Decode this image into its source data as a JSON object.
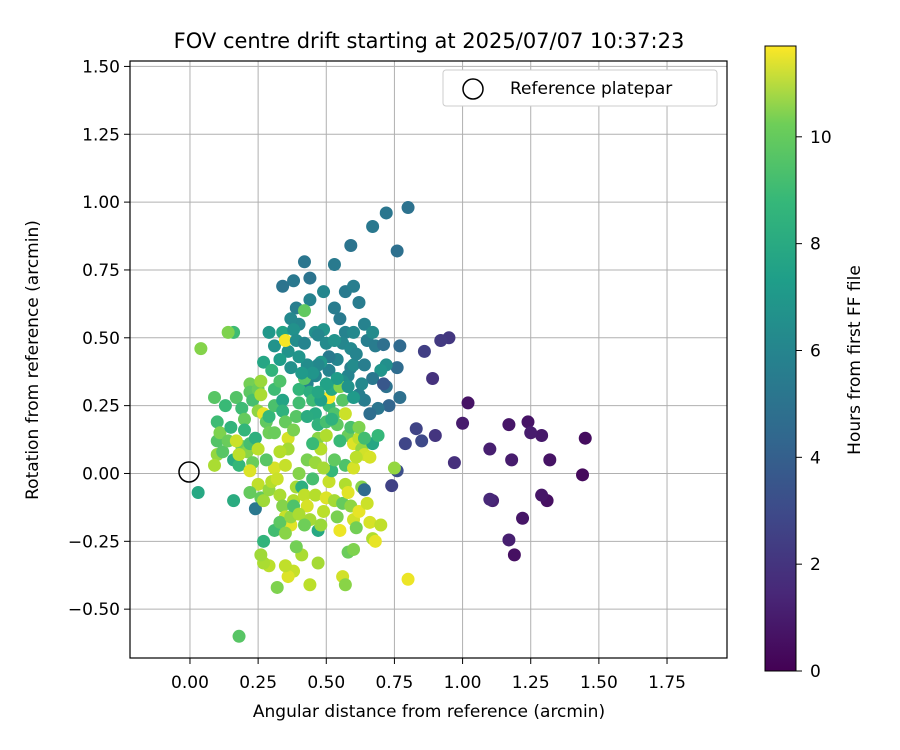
{
  "chart_data": {
    "type": "scatter",
    "title": "FOV centre drift starting at 2025/07/07 10:37:23",
    "xlabel": "Angular distance from reference (arcmin)",
    "ylabel": "Rotation from reference (arcmin)",
    "xlim": [
      -0.22,
      1.97
    ],
    "ylim": [
      -0.68,
      1.52
    ],
    "xticks": [
      0.0,
      0.25,
      0.5,
      0.75,
      1.0,
      1.25,
      1.5,
      1.75
    ],
    "xtick_labels": [
      "0.00",
      "0.25",
      "0.50",
      "0.75",
      "1.00",
      "1.25",
      "1.50",
      "1.75"
    ],
    "yticks": [
      -0.5,
      -0.25,
      0.0,
      0.25,
      0.5,
      0.75,
      1.0,
      1.25,
      1.5
    ],
    "ytick_labels": [
      "−0.50",
      "−0.25",
      "0.00",
      "0.25",
      "0.50",
      "0.75",
      "1.00",
      "1.25",
      "1.50"
    ],
    "grid": true,
    "legend": {
      "placement": "top-right",
      "entries": [
        "Reference platepar"
      ]
    },
    "reference_point": {
      "x": 0.0,
      "y": 0.0
    },
    "colorbar": {
      "label": "Hours from first FF file",
      "colormap": "viridis",
      "range": [
        0,
        11.7
      ],
      "ticks": [
        0,
        2,
        4,
        6,
        8,
        10
      ],
      "tick_labels": [
        "0",
        "2",
        "4",
        "6",
        "8",
        "10"
      ]
    },
    "points": [
      [
        1.44,
        -0.005,
        0.3
      ],
      [
        1.45,
        0.13,
        0.4
      ],
      [
        1.32,
        0.05,
        0.6
      ],
      [
        1.31,
        -0.1,
        0.5
      ],
      [
        1.29,
        -0.08,
        0.7
      ],
      [
        1.29,
        0.14,
        0.8
      ],
      [
        1.24,
        0.19,
        0.6
      ],
      [
        1.25,
        0.15,
        0.9
      ],
      [
        1.22,
        -0.165,
        0.7
      ],
      [
        1.19,
        -0.3,
        0.5
      ],
      [
        1.17,
        -0.245,
        1.0
      ],
      [
        1.18,
        0.05,
        0.9
      ],
      [
        1.17,
        0.18,
        0.7
      ],
      [
        1.11,
        -0.1,
        1.1
      ],
      [
        1.1,
        -0.095,
        1.3
      ],
      [
        1.1,
        0.09,
        1.0
      ],
      [
        1.02,
        0.26,
        0.6
      ],
      [
        1.0,
        0.185,
        0.9
      ],
      [
        0.97,
        0.04,
        1.6
      ],
      [
        0.95,
        0.5,
        1.9
      ],
      [
        0.92,
        0.49,
        2.0
      ],
      [
        0.89,
        0.35,
        1.7
      ],
      [
        0.9,
        0.14,
        1.8
      ],
      [
        0.86,
        0.45,
        2.2
      ],
      [
        0.83,
        0.165,
        2.4
      ],
      [
        0.85,
        0.12,
        2.6
      ],
      [
        0.79,
        0.11,
        2.5
      ],
      [
        0.76,
        0.01,
        2.8
      ],
      [
        0.74,
        -0.045,
        2.3
      ],
      [
        0.8,
        0.98,
        4.4
      ],
      [
        0.76,
        0.82,
        4.3
      ],
      [
        0.72,
        0.96,
        4.6
      ],
      [
        0.67,
        0.91,
        4.7
      ],
      [
        0.59,
        0.84,
        4.5
      ],
      [
        0.53,
        0.77,
        4.8
      ],
      [
        0.42,
        0.78,
        4.6
      ],
      [
        0.44,
        0.72,
        4.5
      ],
      [
        0.38,
        0.71,
        4.7
      ],
      [
        0.34,
        0.69,
        4.5
      ],
      [
        0.57,
        0.67,
        4.8
      ],
      [
        0.6,
        0.69,
        5.0
      ],
      [
        0.62,
        0.63,
        4.9
      ],
      [
        0.53,
        0.61,
        4.9
      ],
      [
        0.49,
        0.67,
        5.4
      ],
      [
        0.44,
        0.64,
        5.2
      ],
      [
        0.39,
        0.61,
        5.0
      ],
      [
        0.4,
        0.55,
        5.4
      ],
      [
        0.46,
        0.52,
        5.8
      ],
      [
        0.49,
        0.53,
        6.0
      ],
      [
        0.55,
        0.57,
        4.8
      ],
      [
        0.57,
        0.52,
        5.2
      ],
      [
        0.56,
        0.48,
        5.4
      ],
      [
        0.6,
        0.52,
        5.5
      ],
      [
        0.64,
        0.55,
        5.2
      ],
      [
        0.65,
        0.49,
        5.0
      ],
      [
        0.68,
        0.47,
        4.9
      ],
      [
        0.67,
        0.52,
        5.6
      ],
      [
        0.71,
        0.475,
        4.3
      ],
      [
        0.77,
        0.47,
        4.0
      ],
      [
        0.76,
        0.39,
        4.1
      ],
      [
        0.72,
        0.4,
        5.8
      ],
      [
        0.7,
        0.38,
        6.1
      ],
      [
        0.67,
        0.35,
        4.7
      ],
      [
        0.72,
        0.32,
        4.4
      ],
      [
        0.71,
        0.33,
        3.2
      ],
      [
        0.77,
        0.28,
        4.3
      ],
      [
        0.73,
        0.25,
        3.8
      ],
      [
        0.69,
        0.24,
        4.6
      ],
      [
        0.64,
        0.27,
        4.9
      ],
      [
        0.66,
        0.22,
        4.2
      ],
      [
        0.62,
        0.29,
        5.0
      ],
      [
        0.63,
        0.33,
        5.5
      ],
      [
        0.59,
        0.39,
        5.1
      ],
      [
        0.58,
        0.36,
        5.3
      ],
      [
        0.56,
        0.34,
        5.7
      ],
      [
        0.6,
        0.4,
        5.6
      ],
      [
        0.54,
        0.42,
        5.3
      ],
      [
        0.51,
        0.43,
        4.8
      ],
      [
        0.51,
        0.38,
        5.2
      ],
      [
        0.48,
        0.41,
        6.2
      ],
      [
        0.47,
        0.4,
        5.5
      ],
      [
        0.46,
        0.36,
        5.4
      ],
      [
        0.43,
        0.4,
        5.7
      ],
      [
        0.43,
        0.33,
        5.2
      ],
      [
        0.4,
        0.43,
        6.1
      ],
      [
        0.37,
        0.39,
        5.9
      ],
      [
        0.36,
        0.45,
        6.0
      ],
      [
        0.33,
        0.42,
        6.5
      ],
      [
        0.31,
        0.47,
        6.0
      ],
      [
        0.29,
        0.52,
        6.2
      ],
      [
        0.34,
        0.52,
        6.8
      ],
      [
        0.35,
        0.49,
        11.6
      ],
      [
        0.37,
        0.57,
        5.5
      ],
      [
        0.38,
        0.53,
        5.9
      ],
      [
        0.39,
        0.49,
        5.7
      ],
      [
        0.42,
        0.48,
        5.3
      ],
      [
        0.42,
        0.6,
        8.8
      ],
      [
        0.47,
        0.51,
        5.4
      ],
      [
        0.5,
        0.48,
        5.6
      ],
      [
        0.53,
        0.49,
        6.0
      ],
      [
        0.59,
        0.46,
        5.5
      ],
      [
        0.61,
        0.44,
        5.3
      ],
      [
        0.64,
        0.4,
        5.0
      ],
      [
        0.16,
        0.52,
        8.0
      ],
      [
        0.14,
        0.52,
        9.4
      ],
      [
        0.04,
        0.46,
        9.5
      ],
      [
        0.09,
        0.28,
        8.6
      ],
      [
        0.1,
        0.19,
        8.0
      ],
      [
        0.1,
        0.12,
        8.5
      ],
      [
        0.11,
        0.15,
        9.4
      ],
      [
        0.1,
        0.07,
        9.8
      ],
      [
        0.09,
        0.03,
        10.2
      ],
      [
        0.12,
        0.08,
        8.6
      ],
      [
        0.14,
        0.12,
        9.0
      ],
      [
        0.15,
        0.17,
        7.6
      ],
      [
        0.13,
        0.25,
        7.9
      ],
      [
        0.17,
        0.28,
        8.5
      ],
      [
        0.19,
        0.24,
        8.0
      ],
      [
        0.2,
        0.2,
        8.9
      ],
      [
        0.2,
        0.16,
        7.7
      ],
      [
        0.19,
        0.1,
        9.1
      ],
      [
        0.17,
        0.12,
        10.8
      ],
      [
        0.16,
        0.05,
        7.2
      ],
      [
        0.18,
        0.03,
        7.8
      ],
      [
        0.21,
        0.08,
        9.6
      ],
      [
        0.22,
        0.11,
        8.2
      ],
      [
        0.23,
        0.04,
        9.0
      ],
      [
        0.24,
        0.13,
        7.4
      ],
      [
        0.25,
        0.09,
        10.5
      ],
      [
        0.22,
        0.33,
        9.2
      ],
      [
        0.22,
        0.3,
        8.7
      ],
      [
        0.23,
        0.27,
        8.2
      ],
      [
        0.25,
        0.31,
        9.0
      ],
      [
        0.26,
        0.34,
        9.9
      ],
      [
        0.27,
        0.41,
        6.9
      ],
      [
        0.26,
        0.29,
        10.2
      ],
      [
        0.25,
        0.23,
        9.7
      ],
      [
        0.27,
        0.22,
        11.3
      ],
      [
        0.28,
        0.19,
        8.8
      ],
      [
        0.29,
        0.15,
        9.1
      ],
      [
        0.29,
        0.21,
        7.8
      ],
      [
        0.31,
        0.25,
        8.3
      ],
      [
        0.31,
        0.31,
        8.0
      ],
      [
        0.3,
        0.38,
        7.6
      ],
      [
        0.33,
        0.34,
        8.4
      ],
      [
        0.34,
        0.27,
        6.8
      ],
      [
        0.34,
        0.23,
        7.5
      ],
      [
        0.35,
        0.19,
        8.9
      ],
      [
        0.36,
        0.13,
        11.0
      ],
      [
        0.36,
        0.09,
        10.1
      ],
      [
        0.38,
        0.16,
        9.3
      ],
      [
        0.39,
        0.21,
        8.6
      ],
      [
        0.4,
        0.26,
        8.1
      ],
      [
        0.4,
        0.31,
        7.7
      ],
      [
        0.42,
        0.35,
        8.6
      ],
      [
        0.44,
        0.3,
        7.3
      ],
      [
        0.45,
        0.27,
        8.0
      ],
      [
        0.46,
        0.22,
        7.1
      ],
      [
        0.47,
        0.18,
        7.5
      ],
      [
        0.47,
        0.13,
        9.6
      ],
      [
        0.48,
        0.09,
        10.4
      ],
      [
        0.5,
        0.14,
        10.3
      ],
      [
        0.5,
        0.19,
        8.2
      ],
      [
        0.51,
        0.25,
        7.9
      ],
      [
        0.51,
        0.28,
        11.8
      ],
      [
        0.52,
        0.31,
        7.0
      ],
      [
        0.53,
        0.22,
        8.4
      ],
      [
        0.54,
        0.18,
        8.8
      ],
      [
        0.55,
        0.32,
        9.5
      ],
      [
        0.56,
        0.27,
        8.6
      ],
      [
        0.57,
        0.22,
        10.8
      ],
      [
        0.58,
        0.14,
        9.0
      ],
      [
        0.59,
        0.17,
        8.3
      ],
      [
        0.6,
        0.11,
        11.1
      ],
      [
        0.62,
        0.13,
        10.6
      ],
      [
        0.63,
        0.09,
        9.8
      ],
      [
        0.64,
        0.07,
        10.9
      ],
      [
        0.66,
        0.06,
        11.0
      ],
      [
        0.67,
        0.11,
        6.9
      ],
      [
        0.69,
        0.14,
        7.8
      ],
      [
        0.75,
        0.02,
        9.8
      ],
      [
        0.18,
        0.07,
        10.5
      ],
      [
        0.22,
        0.01,
        11.1
      ],
      [
        0.25,
        -0.04,
        10.6
      ],
      [
        0.26,
        -0.09,
        8.9
      ],
      [
        0.24,
        -0.13,
        4.7
      ],
      [
        0.27,
        -0.1,
        10.0
      ],
      [
        0.29,
        -0.06,
        9.8
      ],
      [
        0.3,
        -0.03,
        10.4
      ],
      [
        0.31,
        0.02,
        11.0
      ],
      [
        0.32,
        -0.02,
        10.8
      ],
      [
        0.33,
        -0.08,
        10.2
      ],
      [
        0.34,
        -0.12,
        9.5
      ],
      [
        0.35,
        -0.16,
        10.7
      ],
      [
        0.37,
        -0.19,
        11.2
      ],
      [
        0.38,
        -0.1,
        10.3
      ],
      [
        0.39,
        -0.05,
        10.1
      ],
      [
        0.4,
        0.0,
        9.5
      ],
      [
        0.41,
        -0.05,
        7.4
      ],
      [
        0.42,
        -0.08,
        10.6
      ],
      [
        0.43,
        -0.12,
        11.0
      ],
      [
        0.44,
        -0.17,
        10.1
      ],
      [
        0.45,
        -0.02,
        8.2
      ],
      [
        0.46,
        -0.08,
        10.4
      ],
      [
        0.47,
        -0.21,
        7.0
      ],
      [
        0.48,
        -0.19,
        9.9
      ],
      [
        0.49,
        -0.14,
        10.5
      ],
      [
        0.5,
        -0.09,
        11.1
      ],
      [
        0.51,
        -0.03,
        10.7
      ],
      [
        0.52,
        0.01,
        7.8
      ],
      [
        0.53,
        -0.1,
        10.1
      ],
      [
        0.54,
        -0.16,
        9.3
      ],
      [
        0.55,
        -0.21,
        11.4
      ],
      [
        0.56,
        -0.11,
        8.9
      ],
      [
        0.57,
        -0.04,
        10.3
      ],
      [
        0.58,
        -0.07,
        11.2
      ],
      [
        0.59,
        -0.12,
        9.7
      ],
      [
        0.6,
        -0.17,
        10.9
      ],
      [
        0.61,
        -0.2,
        9.2
      ],
      [
        0.62,
        -0.14,
        11.3
      ],
      [
        0.63,
        -0.05,
        9.5
      ],
      [
        0.64,
        -0.06,
        4.1
      ],
      [
        0.65,
        -0.11,
        10.8
      ],
      [
        0.66,
        -0.18,
        11.0
      ],
      [
        0.67,
        -0.24,
        10.3
      ],
      [
        0.68,
        -0.25,
        11.3
      ],
      [
        0.7,
        -0.19,
        10.6
      ],
      [
        0.56,
        -0.38,
        10.9
      ],
      [
        0.57,
        -0.41,
        9.6
      ],
      [
        0.58,
        -0.29,
        9.0
      ],
      [
        0.6,
        -0.28,
        9.4
      ],
      [
        0.47,
        -0.33,
        10.1
      ],
      [
        0.44,
        -0.41,
        10.5
      ],
      [
        0.41,
        -0.3,
        10.2
      ],
      [
        0.39,
        -0.27,
        9.2
      ],
      [
        0.38,
        -0.36,
        10.7
      ],
      [
        0.36,
        -0.38,
        11.1
      ],
      [
        0.35,
        -0.34,
        10.6
      ],
      [
        0.32,
        -0.42,
        9.4
      ],
      [
        0.29,
        -0.34,
        10.5
      ],
      [
        0.27,
        -0.33,
        10.2
      ],
      [
        0.26,
        -0.3,
        10.0
      ],
      [
        0.27,
        -0.25,
        7.6
      ],
      [
        0.31,
        -0.21,
        8.1
      ],
      [
        0.33,
        -0.18,
        8.7
      ],
      [
        0.35,
        -0.22,
        9.6
      ],
      [
        0.37,
        -0.16,
        9.8
      ],
      [
        0.38,
        -0.12,
        8.4
      ],
      [
        0.4,
        -0.15,
        10.2
      ],
      [
        0.42,
        -0.19,
        9.1
      ],
      [
        0.18,
        -0.6,
        8.6
      ],
      [
        0.16,
        -0.1,
        7.2
      ],
      [
        0.03,
        -0.07,
        7.0
      ],
      [
        0.8,
        -0.39,
        11.4
      ],
      [
        0.22,
        -0.07,
        8.9
      ],
      [
        0.43,
        0.05,
        9.3
      ],
      [
        0.45,
        0.11,
        7.9
      ],
      [
        0.46,
        0.04,
        9.9
      ],
      [
        0.33,
        0.08,
        10.4
      ],
      [
        0.28,
        0.05,
        8.6
      ],
      [
        0.31,
        0.15,
        9.0
      ],
      [
        0.35,
        0.03,
        10.7
      ],
      [
        0.43,
        0.21,
        7.2
      ],
      [
        0.48,
        0.27,
        6.6
      ],
      [
        0.52,
        0.2,
        7.5
      ],
      [
        0.55,
        0.12,
        7.9
      ],
      [
        0.57,
        0.03,
        8.4
      ],
      [
        0.53,
        0.05,
        8.8
      ],
      [
        0.49,
        0.02,
        10.1
      ],
      [
        0.6,
        0.02,
        11.0
      ],
      [
        0.61,
        0.06,
        10.5
      ],
      [
        0.62,
        0.17,
        9.4
      ],
      [
        0.64,
        0.13,
        8.1
      ],
      [
        0.6,
        0.28,
        6.3
      ],
      [
        0.58,
        0.32,
        6.0
      ],
      [
        0.54,
        0.35,
        6.4
      ],
      [
        0.5,
        0.33,
        6.7
      ],
      [
        0.47,
        0.3,
        6.9
      ],
      [
        0.45,
        0.37,
        6.1
      ],
      [
        0.41,
        0.37,
        6.3
      ]
    ]
  }
}
